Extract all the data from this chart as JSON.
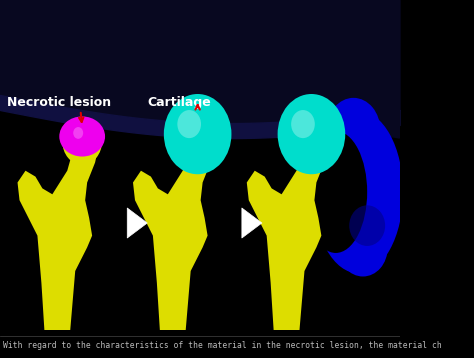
{
  "background_color": "#000000",
  "caption_text": "With regard to the characteristics of the material in the necrotic lesion, the material ch",
  "caption_color": "#bbbbbb",
  "caption_fontsize": 5.8,
  "label1_text": "Necrotic lesion",
  "label2_text": "Cartilage",
  "label_color": "#ffffff",
  "label_fontsize": 9,
  "label_fontweight": "bold",
  "arrow_color": "#dd0000",
  "bone_color": "#dddd00",
  "bone_shadow": "#888800",
  "necrotic_color": "#ee00ee",
  "necrotic_dark": "#990099",
  "cartilage_color": "#00ddcc",
  "cartilage_dark": "#009988",
  "acetabulum_color": "#0000dd",
  "acetabulum_dark": "#000088",
  "nav_arrow_color": "#ffffff",
  "navy_bg": "#080820",
  "navy_mid": "#101040"
}
